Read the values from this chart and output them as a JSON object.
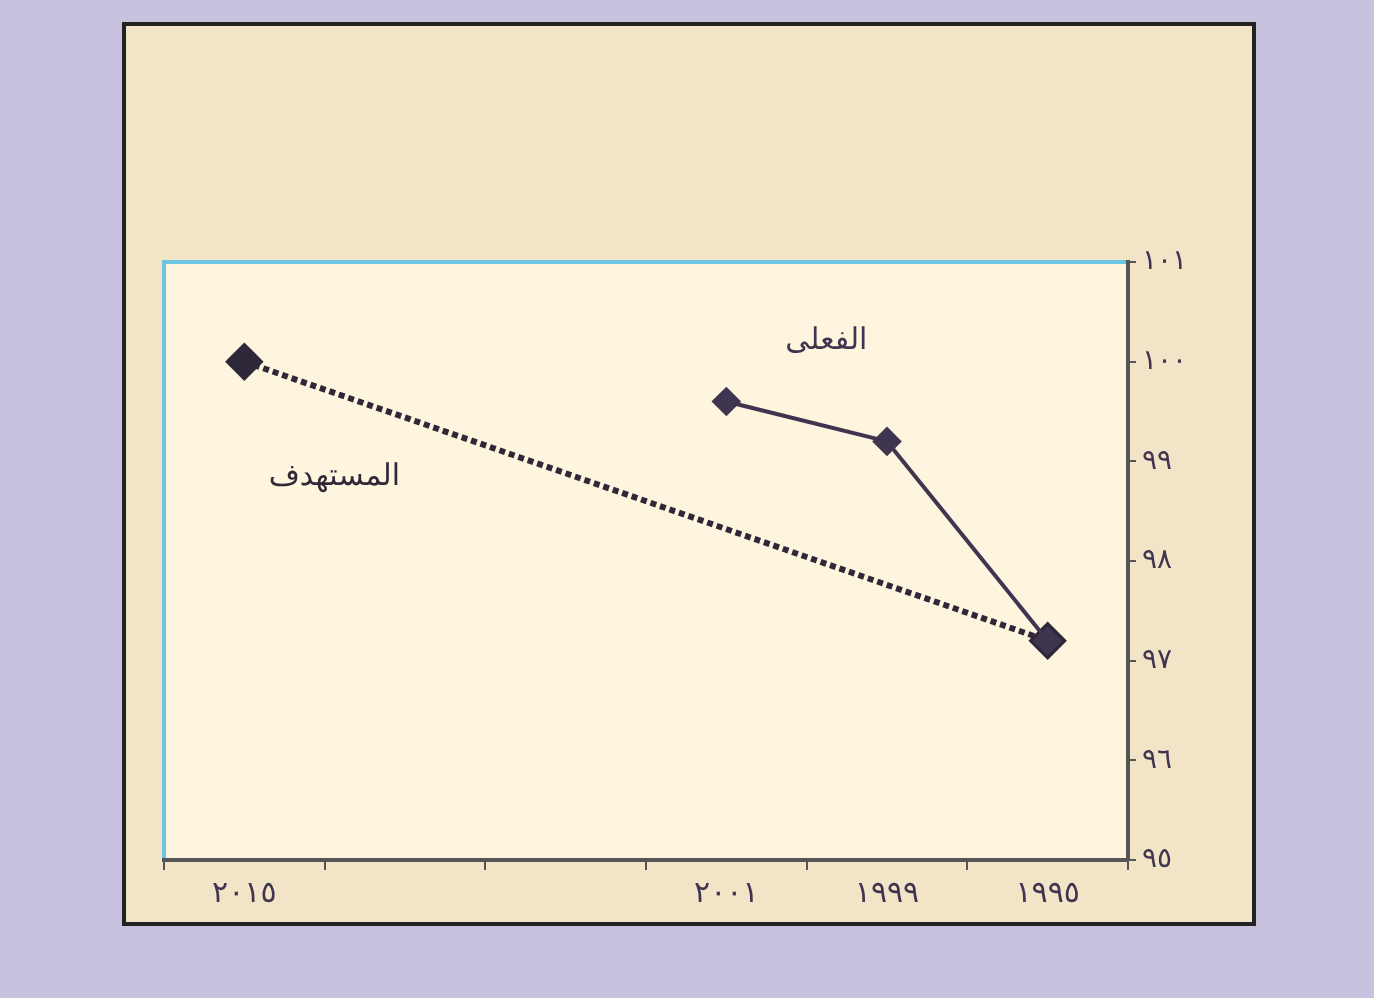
{
  "chart_data": {
    "type": "line",
    "categories": [
      "٢٠١٥",
      null,
      null,
      "٢٠٠١",
      "١٩٩٩",
      "١٩٩٥"
    ],
    "series": [
      {
        "name": "الفعلى",
        "color": "#3f3550",
        "values": [
          null,
          null,
          null,
          99.6,
          99.2,
          97.2
        ],
        "line_style": "solid"
      },
      {
        "name": "المستهدف",
        "color": "#2e2838",
        "values": [
          100,
          null,
          null,
          null,
          null,
          97.2
        ],
        "line_style": "dotted"
      }
    ],
    "ylim": [
      95,
      101
    ],
    "yticks": [
      {
        "value": 95,
        "label": "٩٥"
      },
      {
        "value": 96,
        "label": "٩٦"
      },
      {
        "value": 97,
        "label": "٩٧"
      },
      {
        "value": 98,
        "label": "٩٨"
      },
      {
        "value": 99,
        "label": "٩٩"
      },
      {
        "value": 100,
        "label": "١٠٠"
      },
      {
        "value": 101,
        "label": "١٠١"
      }
    ],
    "marker": "diamond",
    "grid": false,
    "legend": false
  }
}
